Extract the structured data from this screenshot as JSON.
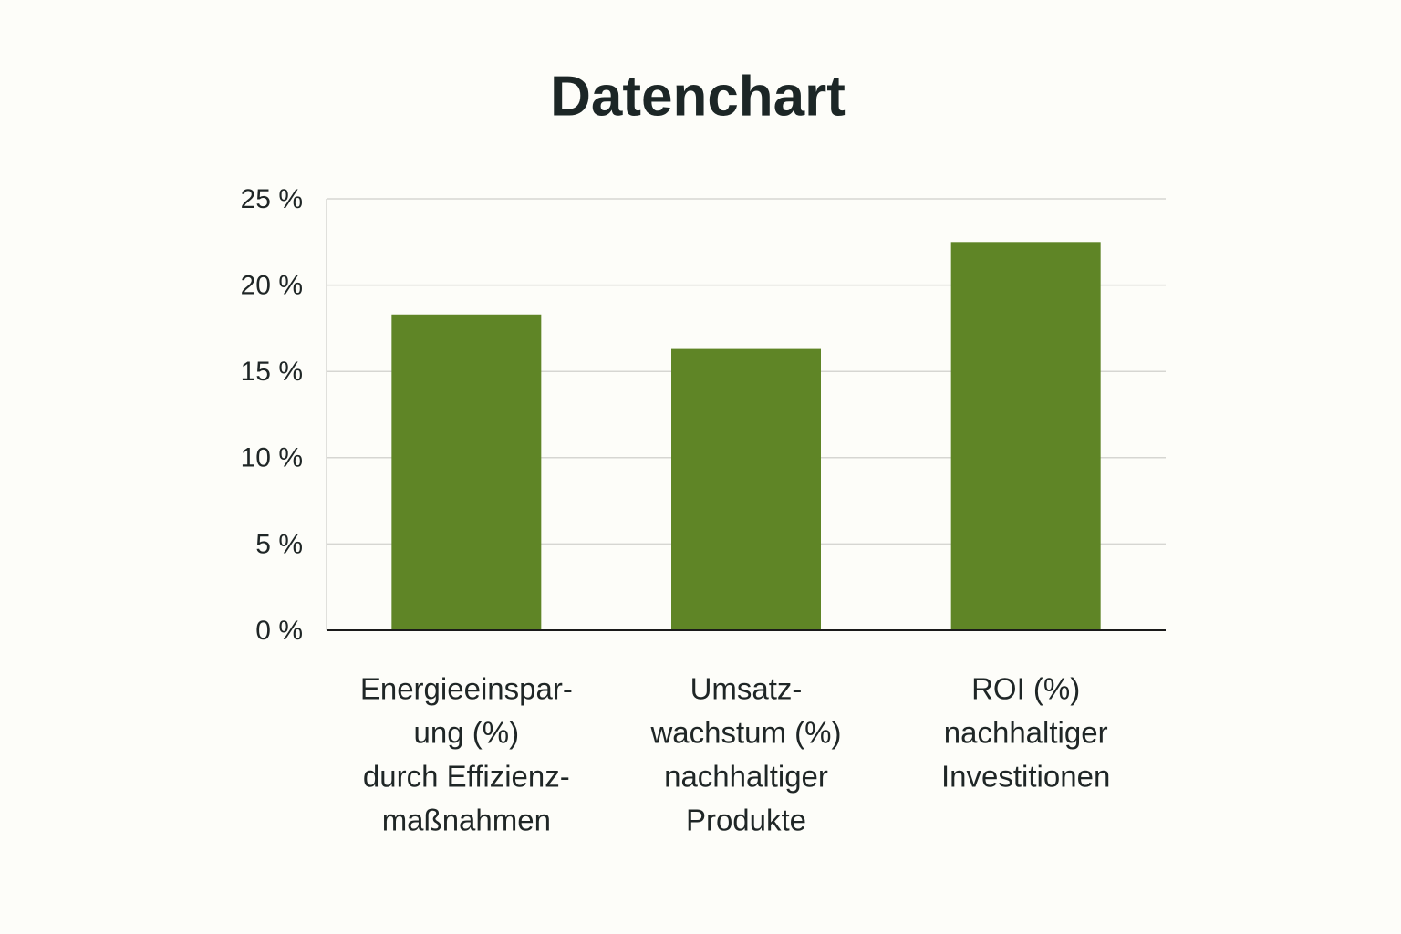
{
  "chart_data": {
    "type": "bar",
    "title": "Datenchart",
    "categories": [
      [
        "Energieeinspar-",
        "ung (%)",
        "durch Effizienz-",
        "maßnahmen"
      ],
      [
        "Umsatz-",
        "wachstum (%)",
        "nachhaltiger",
        "Produkte"
      ],
      [
        "ROI (%)",
        "nachhaltiger",
        "Investitionen"
      ]
    ],
    "values": [
      18.3,
      16.3,
      22.5
    ],
    "color": "#5f8526",
    "ylim": [
      0,
      25
    ],
    "yticks": [
      {
        "value": 0,
        "label": "0 %"
      },
      {
        "value": 5,
        "label": "5 %"
      },
      {
        "value": 10,
        "label": "10 %"
      },
      {
        "value": 15,
        "label": "15 %"
      },
      {
        "value": 20,
        "label": "20 %"
      },
      {
        "value": 25,
        "label": "25 %"
      }
    ],
    "grid": true
  }
}
